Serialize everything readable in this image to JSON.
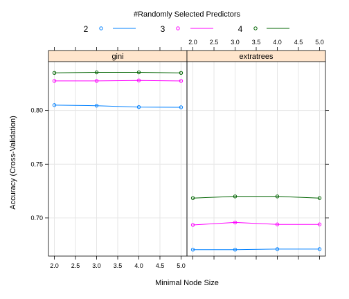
{
  "chart_data": {
    "type": "line",
    "legend": {
      "title": "#Randomly Selected Predictors",
      "placement": "top",
      "entries": [
        {
          "label": "2",
          "color": "#0080ff"
        },
        {
          "label": "3",
          "color": "#ff00ff"
        },
        {
          "label": "4",
          "color": "#006400"
        }
      ]
    },
    "xlabel": "Minimal Node Size",
    "ylabel": "Accuracy (Cross-Validation)",
    "x_ticks": [
      "2.0",
      "2.5",
      "3.0",
      "3.5",
      "4.0",
      "4.5",
      "5.0"
    ],
    "y_ticks": [
      "0.70",
      "0.75",
      "0.80"
    ],
    "xlim": [
      1.86,
      5.14
    ],
    "ylim": [
      0.6645,
      0.8455
    ],
    "grid": true,
    "panels": [
      {
        "name": "gini",
        "series": [
          {
            "name": "2",
            "x": [
              2,
              3,
              4,
              5
            ],
            "y": [
              0.805,
              0.8045,
              0.8032,
              0.803
            ]
          },
          {
            "name": "3",
            "x": [
              2,
              3,
              4,
              5
            ],
            "y": [
              0.8275,
              0.8275,
              0.828,
              0.8275
            ]
          },
          {
            "name": "4",
            "x": [
              2,
              3,
              4,
              5
            ],
            "y": [
              0.835,
              0.8355,
              0.8355,
              0.835
            ]
          }
        ]
      },
      {
        "name": "extratrees",
        "series": [
          {
            "name": "2",
            "x": [
              2,
              3,
              4,
              5
            ],
            "y": [
              0.6705,
              0.6705,
              0.671,
              0.671
            ]
          },
          {
            "name": "3",
            "x": [
              2,
              3,
              4,
              5
            ],
            "y": [
              0.6935,
              0.6958,
              0.694,
              0.694
            ]
          },
          {
            "name": "4",
            "x": [
              2,
              3,
              4,
              5
            ],
            "y": [
              0.7185,
              0.72,
              0.72,
              0.7185
            ]
          }
        ]
      }
    ]
  }
}
